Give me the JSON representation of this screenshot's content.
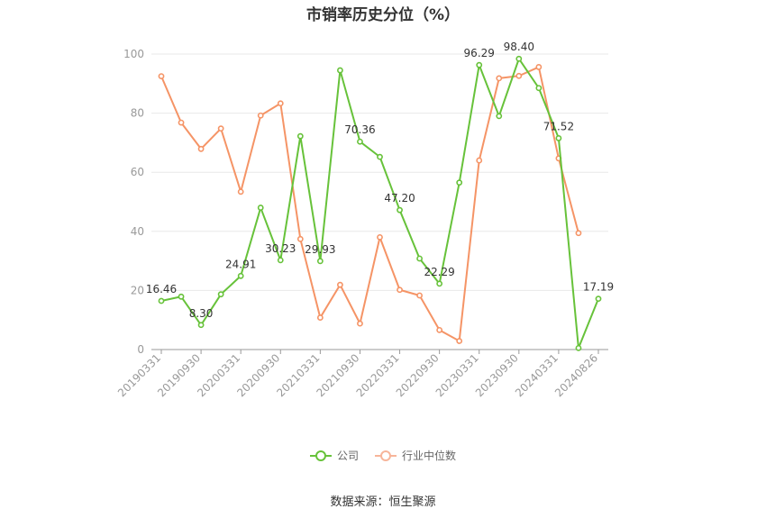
{
  "title": "市销率历史分位（%）",
  "source": "数据来源：恒生聚源",
  "colors": {
    "company": "#67c23a",
    "industry": "#f59466",
    "grid": "#e8e8e8",
    "axis": "#999999",
    "text": "#999999",
    "label": "#333333"
  },
  "chart_data": {
    "type": "line",
    "title": "市销率历史分位（%）",
    "ylim": [
      0,
      100
    ],
    "yticks": [
      0,
      20,
      40,
      60,
      80,
      100
    ],
    "grid": true,
    "legend_position": "bottom",
    "x_tick_labels": [
      "20190331",
      "20190930",
      "20200331",
      "20200930",
      "20210331",
      "20210930",
      "20220331",
      "20220930",
      "20230331",
      "20230930",
      "20240331",
      "20240826"
    ],
    "x": [
      "20190331",
      "20190630",
      "20190930",
      "20191231",
      "20200331",
      "20200630",
      "20200930",
      "20201231",
      "20210331",
      "20210630",
      "20210930",
      "20211231",
      "20220331",
      "20220630",
      "20220930",
      "20221231",
      "20230331",
      "20230630",
      "20230930",
      "20231231",
      "20240331",
      "20240630",
      "20240826"
    ],
    "series": [
      {
        "name": "公司",
        "color": "#67c23a",
        "values": [
          16.46,
          17.9,
          8.3,
          18.7,
          24.91,
          48.0,
          30.23,
          72.2,
          29.93,
          94.5,
          70.36,
          65.2,
          47.2,
          30.8,
          22.29,
          56.5,
          96.29,
          79.0,
          98.4,
          88.5,
          71.52,
          0.5,
          17.19
        ]
      },
      {
        "name": "行业中位数",
        "color": "#f59466",
        "values": [
          92.5,
          76.8,
          67.9,
          74.8,
          53.4,
          79.2,
          83.3,
          37.4,
          10.8,
          21.9,
          8.8,
          38.0,
          20.2,
          18.3,
          6.6,
          2.9,
          64.0,
          91.8,
          92.6,
          95.6,
          64.7,
          39.4,
          null
        ]
      }
    ],
    "data_labels": [
      {
        "index": 0,
        "text": "16.46"
      },
      {
        "index": 2,
        "text": "8.30"
      },
      {
        "index": 4,
        "text": "24.91"
      },
      {
        "index": 6,
        "text": "30.23"
      },
      {
        "index": 8,
        "text": "29.93"
      },
      {
        "index": 10,
        "text": "70.36"
      },
      {
        "index": 12,
        "text": "47.20"
      },
      {
        "index": 14,
        "text": "22.29"
      },
      {
        "index": 16,
        "text": "96.29"
      },
      {
        "index": 18,
        "text": "98.40"
      },
      {
        "index": 20,
        "text": "71.52"
      },
      {
        "index": 22,
        "text": "17.19"
      }
    ]
  },
  "legend": [
    {
      "label": "公司",
      "color": "#67c23a"
    },
    {
      "label": "行业中位数",
      "color": "#f59466"
    }
  ]
}
